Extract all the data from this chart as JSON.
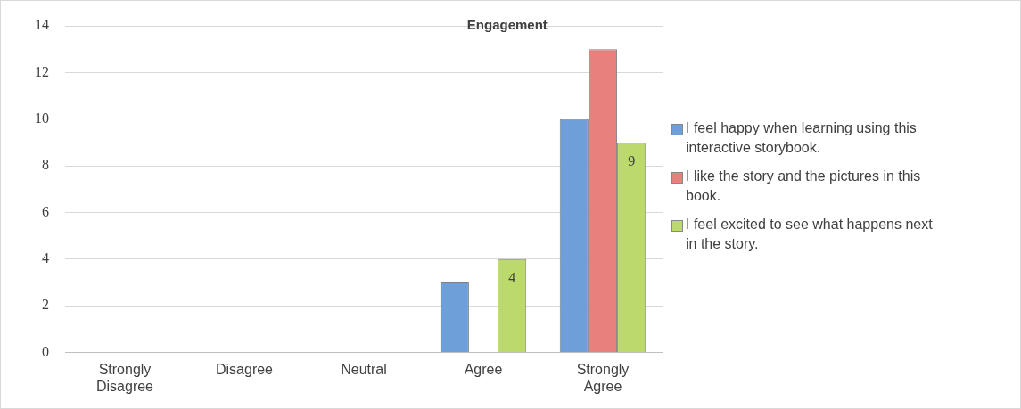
{
  "chart_data": {
    "type": "bar",
    "title": "Engagement",
    "categories": [
      "Strongly Disagree",
      "Disagree",
      "Neutral",
      "Agree",
      "Strongly Agree"
    ],
    "series": [
      {
        "name": "I feel happy when learning using this interactive storybook.",
        "color": "#6f9fd8",
        "values": [
          0,
          0,
          0,
          3,
          10
        ]
      },
      {
        "name": "I like the story and the pictures in this book.",
        "color": "#e8807e",
        "values": [
          0,
          0,
          0,
          0,
          13
        ]
      },
      {
        "name": "I feel excited to see what happens next in the story.",
        "color": "#bcd96c",
        "values": [
          0,
          0,
          0,
          4,
          9
        ],
        "value_labels": [
          null,
          null,
          null,
          "4",
          "9"
        ]
      }
    ],
    "ylim": [
      0,
      14
    ],
    "yticks": [
      0,
      2,
      4,
      6,
      8,
      10,
      12,
      14
    ],
    "grid": "y",
    "legend": "right"
  }
}
